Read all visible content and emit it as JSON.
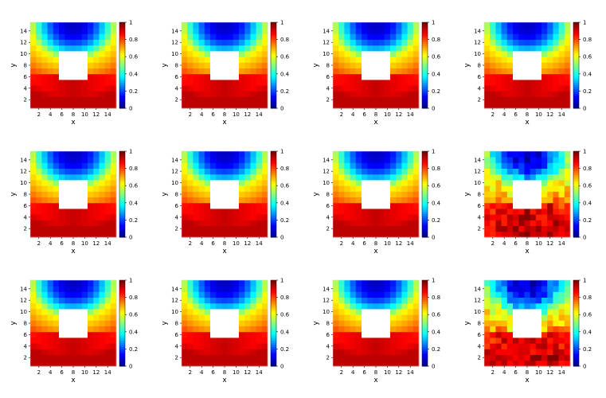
{
  "chart_data": {
    "type": "heatmap",
    "layout": {
      "rows": 3,
      "cols": 4
    },
    "xlabel": "x",
    "ylabel": "y",
    "xticks": [
      2,
      4,
      6,
      8,
      10,
      12,
      14
    ],
    "yticks": [
      2,
      4,
      6,
      8,
      10,
      12,
      14
    ],
    "xlim": [
      0.5,
      15.5
    ],
    "ylim": [
      0.5,
      15.5
    ],
    "grid_size": 15,
    "hole": {
      "x": [
        6,
        10
      ],
      "y": [
        6,
        10
      ]
    },
    "colorbar": {
      "min": 0,
      "max": 1,
      "ticks": [
        "0",
        "0.2",
        "0.4",
        "0.6",
        "0.8",
        "1"
      ]
    },
    "colormap": [
      "#00008f",
      "#0000ff",
      "#0080ff",
      "#00ffff",
      "#80ff80",
      "#ffff00",
      "#ff8000",
      "#ff0000",
      "#800000"
    ],
    "panels": [
      {
        "id": 1,
        "variant": "smooth"
      },
      {
        "id": 2,
        "variant": "smooth"
      },
      {
        "id": 3,
        "variant": "smooth"
      },
      {
        "id": 4,
        "variant": "smooth"
      },
      {
        "id": 5,
        "variant": "smooth"
      },
      {
        "id": 6,
        "variant": "smooth"
      },
      {
        "id": 7,
        "variant": "smooth"
      },
      {
        "id": 8,
        "variant": "noisy"
      },
      {
        "id": 9,
        "variant": "smooth"
      },
      {
        "id": 10,
        "variant": "smooth"
      },
      {
        "id": 11,
        "variant": "smooth"
      },
      {
        "id": 12,
        "variant": "noisy"
      }
    ]
  }
}
